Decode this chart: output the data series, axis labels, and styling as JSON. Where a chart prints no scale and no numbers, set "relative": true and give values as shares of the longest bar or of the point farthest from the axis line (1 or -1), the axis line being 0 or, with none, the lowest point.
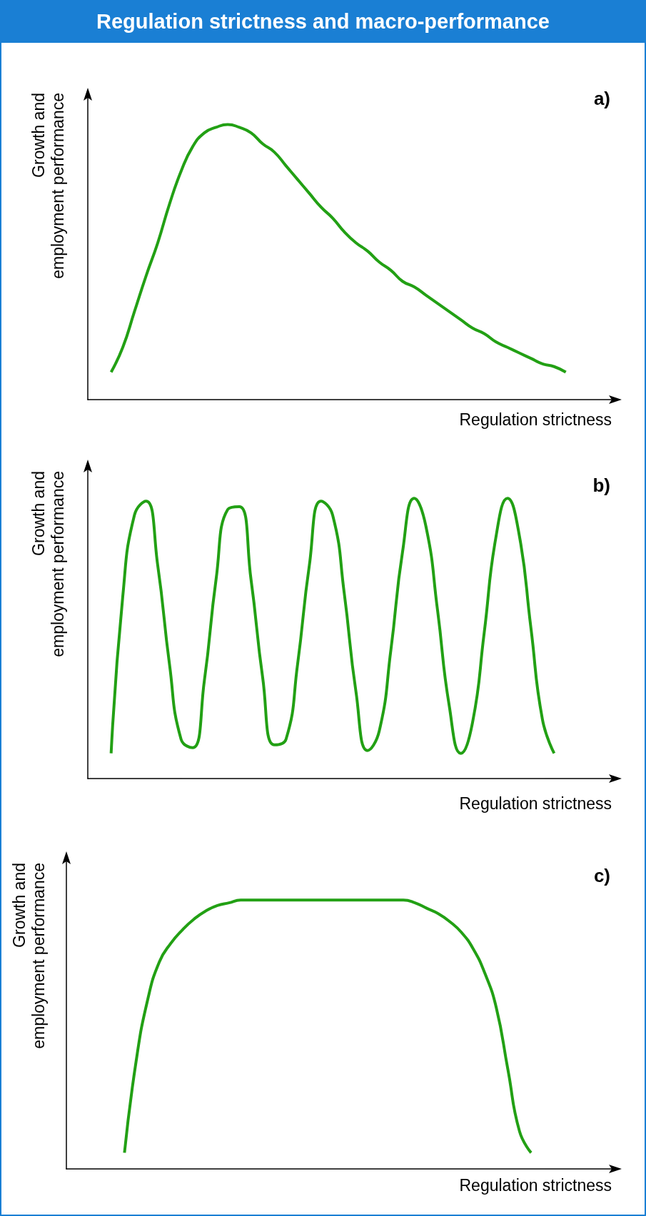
{
  "chart_data": [
    {
      "type": "line",
      "title": "Regulation strictness and macro-performance",
      "xlabel": "Regulation strictness",
      "ylabel": "Growth and\nemployment performance",
      "annotations": [
        "a)"
      ],
      "relative": true,
      "tick_labels": false,
      "marker": "none",
      "color": "#22a014",
      "categories": [
        null,
        null,
        null,
        null,
        null,
        null,
        null,
        null,
        null,
        null,
        null,
        null,
        null,
        null,
        null,
        null,
        null,
        null,
        null,
        null,
        null,
        null,
        null,
        null,
        null,
        null,
        null,
        null,
        null,
        null,
        null,
        null,
        null,
        null,
        null,
        null,
        null,
        null,
        null,
        null,
        null,
        null,
        null,
        null,
        null,
        null
      ],
      "values": [
        null,
        null,
        0.1,
        0.19,
        0.32,
        0.45,
        0.57,
        0.71,
        0.83,
        0.92,
        0.97,
        0.99,
        1.0,
        0.99,
        0.97,
        0.93,
        0.9,
        0.85,
        0.8,
        0.75,
        0.7,
        0.66,
        0.61,
        0.57,
        0.54,
        0.5,
        0.47,
        0.43,
        0.41,
        0.38,
        0.35,
        0.32,
        0.29,
        0.26,
        0.24,
        0.21,
        0.19,
        0.17,
        0.15,
        0.13,
        0.12,
        0.1,
        null,
        null,
        null,
        null
      ]
    },
    {
      "type": "line",
      "xlabel": "Regulation strictness",
      "ylabel": "Growth and\nemployment performance",
      "annotations": [
        "b)"
      ],
      "relative": true,
      "tick_labels": false,
      "marker": "none",
      "color": "#22a014",
      "categories": [
        null,
        null,
        null,
        null,
        null,
        null,
        null,
        null,
        null,
        null,
        null,
        null,
        null,
        null,
        null,
        null,
        null,
        null,
        null,
        null,
        null,
        null,
        null,
        null,
        null,
        null,
        null,
        null,
        null,
        null,
        null,
        null,
        null,
        null,
        null,
        null,
        null,
        null,
        null,
        null,
        null,
        null,
        null,
        null,
        null,
        null
      ],
      "values": [
        null,
        null,
        0.09,
        0.65,
        0.94,
        0.99,
        0.76,
        0.41,
        0.14,
        0.11,
        0.35,
        0.71,
        0.96,
        0.97,
        0.71,
        0.36,
        0.12,
        0.14,
        0.41,
        0.76,
        0.99,
        0.94,
        0.66,
        0.31,
        0.1,
        0.17,
        0.46,
        0.81,
        1.0,
        0.9,
        0.6,
        0.26,
        0.09,
        0.2,
        0.52,
        0.86,
        1.0,
        0.87,
        0.54,
        0.21,
        0.09,
        null,
        null,
        null,
        null,
        null
      ]
    },
    {
      "type": "line",
      "xlabel": "Regulation strictness",
      "ylabel": "Growth and\nemployment performance",
      "annotations": [
        "c)"
      ],
      "relative": true,
      "tick_labels": false,
      "marker": "none",
      "color": "#22a014",
      "categories": [
        null,
        null,
        null,
        null,
        null,
        null,
        null,
        null,
        null,
        null,
        null,
        null,
        null,
        null,
        null,
        null,
        null,
        null,
        null,
        null,
        null,
        null,
        null,
        null,
        null,
        null,
        null,
        null,
        null,
        null,
        null,
        null,
        null,
        null,
        null,
        null,
        null,
        null,
        null,
        null,
        null,
        null,
        null,
        null,
        null,
        null,
        null,
        null
      ],
      "values": [
        null,
        null,
        null,
        null,
        null,
        0.06,
        0.4,
        0.63,
        0.77,
        0.84,
        0.89,
        0.93,
        0.96,
        0.98,
        0.99,
        1.0,
        1.0,
        1.0,
        1.0,
        1.0,
        1.0,
        1.0,
        1.0,
        1.0,
        1.0,
        1.0,
        1.0,
        1.0,
        1.0,
        1.0,
        0.99,
        0.97,
        0.95,
        0.92,
        0.88,
        0.82,
        0.73,
        0.6,
        0.37,
        0.14,
        0.06,
        null,
        null,
        null,
        null,
        null,
        null,
        null
      ]
    }
  ]
}
